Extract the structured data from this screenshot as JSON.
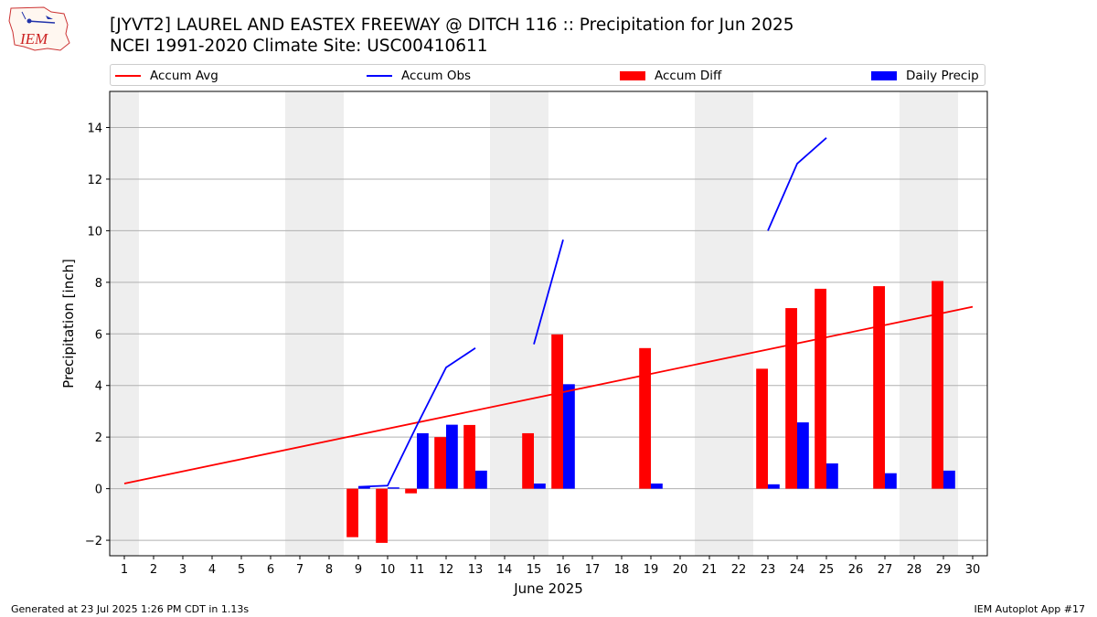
{
  "header": {
    "title_line1": "[JYVT2] LAUREL AND EASTEX FREEWAY @ DITCH 116 :: Precipitation for Jun 2025",
    "title_line2": "NCEI 1991-2020 Climate Site: USC00410611",
    "logo_text": "IEM"
  },
  "footer": {
    "generated": "Generated at 23 Jul 2025 1:26 PM CDT in 1.13s",
    "app": "IEM Autoplot App #17"
  },
  "colors": {
    "avg": "#ff0000",
    "obs": "#0000ff",
    "diff": "#ff0000",
    "daily": "#0000ff",
    "weekend_shade": "#eeeeee",
    "grid": "#b0b0b0"
  },
  "chart_data": {
    "type": "bar",
    "xlabel": "June 2025",
    "ylabel": "Precipitation [inch]",
    "xlim": [
      0.5,
      30.5
    ],
    "ylim": [
      -2.6,
      15.4
    ],
    "yticks": [
      -2,
      0,
      2,
      4,
      6,
      8,
      10,
      12,
      14
    ],
    "xticks": [
      "1",
      "2",
      "3",
      "4",
      "5",
      "6",
      "7",
      "8",
      "9",
      "10",
      "11",
      "12",
      "13",
      "14",
      "15",
      "16",
      "17",
      "18",
      "19",
      "20",
      "21",
      "22",
      "23",
      "24",
      "25",
      "26",
      "27",
      "28",
      "29",
      "30"
    ],
    "grid": "horizontal",
    "legend_placement": "top",
    "weekend_spans": [
      [
        0.5,
        1.5
      ],
      [
        6.5,
        8.5
      ],
      [
        13.5,
        15.5
      ],
      [
        20.5,
        22.5
      ],
      [
        27.5,
        29.5
      ]
    ],
    "series": [
      {
        "name": "Accum Avg",
        "kind": "line",
        "x": [
          1,
          30
        ],
        "y": [
          0.2,
          7.05
        ]
      },
      {
        "name": "Accum Obs",
        "kind": "line",
        "segments": [
          {
            "x": [
              9,
              10,
              11,
              12,
              13
            ],
            "y": [
              0.07,
              0.12,
              2.45,
              4.7,
              5.45
            ]
          },
          {
            "x": [
              15,
              16
            ],
            "y": [
              5.6,
              9.65
            ]
          },
          {
            "x": [
              23,
              24,
              25
            ],
            "y": [
              10.0,
              12.6,
              13.6
            ]
          }
        ]
      },
      {
        "name": "Accum Diff",
        "kind": "bar",
        "x": [
          9,
          10,
          11,
          12,
          13,
          15,
          16,
          19,
          23,
          24,
          25,
          27,
          29
        ],
        "y": [
          -1.88,
          -2.1,
          -0.18,
          2.0,
          2.47,
          2.15,
          5.98,
          5.45,
          4.65,
          7.0,
          7.75,
          7.85,
          8.05
        ]
      },
      {
        "name": "Daily Precip",
        "kind": "bar",
        "x": [
          9,
          10,
          11,
          12,
          13,
          15,
          16,
          19,
          23,
          24,
          25,
          27,
          29
        ],
        "y": [
          0.07,
          0.05,
          2.15,
          2.48,
          0.7,
          0.2,
          4.05,
          0.2,
          0.17,
          2.57,
          0.98,
          0.6,
          0.7
        ]
      }
    ]
  }
}
